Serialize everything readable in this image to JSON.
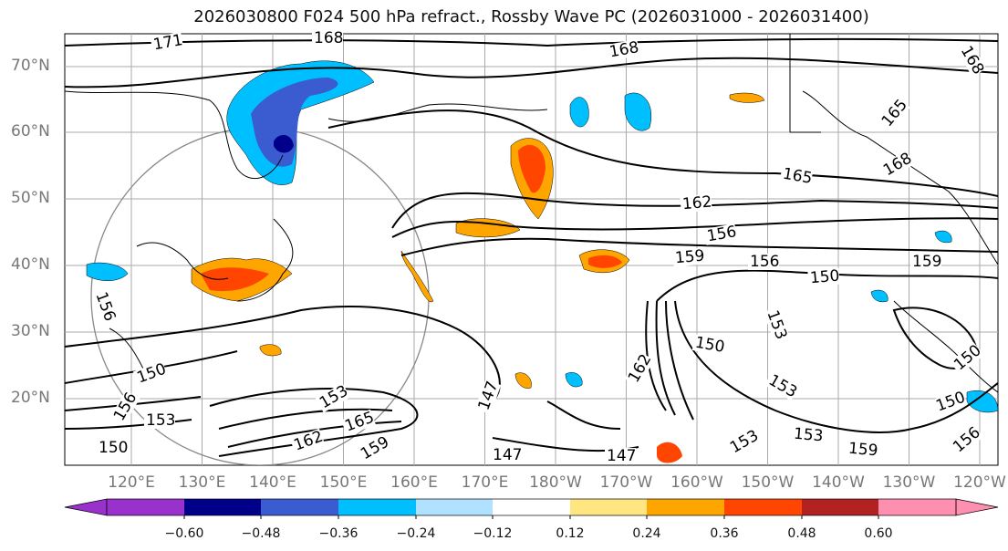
{
  "title": "2026030800 F024 500 hPa refract., Rossby Wave PC (2026031000 - 2026031400)",
  "lat_labels": [
    "70°N",
    "60°N",
    "50°N",
    "40°N",
    "30°N",
    "20°N"
  ],
  "lon_labels": [
    "120°E",
    "130°E",
    "140°E",
    "150°E",
    "160°E",
    "170°E",
    "180°W",
    "170°W",
    "160°W",
    "150°W",
    "140°W",
    "130°W",
    "120°W"
  ],
  "contour_labels": [
    "171",
    "168",
    "168",
    "168",
    "165",
    "165",
    "162",
    "156",
    "159",
    "156",
    "150",
    "153",
    "159",
    "150",
    "153",
    "150",
    "147",
    "162",
    "153",
    "147",
    "153",
    "159",
    "150",
    "156",
    "150",
    "153",
    "147",
    "165",
    "162",
    "156",
    "159",
    "168",
    "153",
    "150",
    "156"
  ],
  "colorbar": {
    "ticks": [
      "−0.60",
      "−0.48",
      "−0.36",
      "−0.24",
      "−0.12",
      "0.12",
      "0.24",
      "0.36",
      "0.48",
      "0.60"
    ],
    "colors": [
      "#9932cc",
      "#00008b",
      "#3b5bd1",
      "#00bfff",
      "#b0e2ff",
      "#ffffff",
      "#ffe680",
      "#ffa500",
      "#ff4500",
      "#b22222",
      "#ff8fb0"
    ]
  }
}
